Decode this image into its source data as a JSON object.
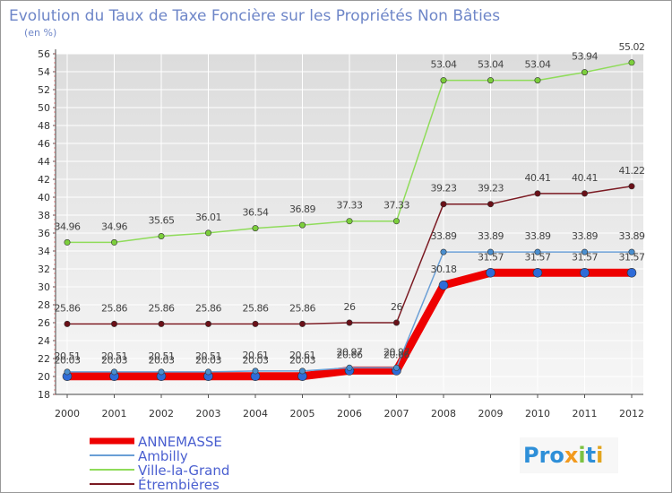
{
  "chart_data": {
    "type": "line",
    "title": "Evolution du Taux de Taxe Foncière sur les Propriétés Non Bâties",
    "subtitle": "(en %)",
    "xlabel": "",
    "ylabel": "",
    "x": [
      "2000",
      "2001",
      "2002",
      "2003",
      "2004",
      "2005",
      "2006",
      "2007",
      "2008",
      "2009",
      "2010",
      "2011",
      "2012"
    ],
    "ylim": [
      18,
      56
    ],
    "yticks": [
      "18",
      "20",
      "22",
      "24",
      "26",
      "28",
      "30",
      "32",
      "34",
      "36",
      "38",
      "40",
      "42",
      "44",
      "46",
      "48",
      "50",
      "52",
      "54",
      "56"
    ],
    "legend_position": "bottom-left",
    "series": [
      {
        "name": "ANNEMASSE",
        "color": "#ee0000",
        "values": [
          20.03,
          20.03,
          20.03,
          20.03,
          20.03,
          20.03,
          20.66,
          20.66,
          30.18,
          31.57,
          31.57,
          31.57,
          31.57
        ],
        "labels": [
          "20.03",
          "20.03",
          "20.03",
          "20.03",
          "20.03",
          "20.03",
          "20.66",
          "20.66",
          "30.18",
          "31.57",
          "31.57",
          "31.57",
          "31.57"
        ]
      },
      {
        "name": "Ambilly",
        "color": "#6a9fd6",
        "values": [
          20.51,
          20.51,
          20.51,
          20.51,
          20.61,
          20.61,
          20.97,
          20.97,
          33.89,
          33.89,
          33.89,
          33.89,
          33.89
        ],
        "labels": [
          "20.51",
          "20.51",
          "20.51",
          "20.51",
          "20.61",
          "20.61",
          "20.97",
          "20.97",
          "33.89",
          "33.89",
          "33.89",
          "33.89",
          "33.89"
        ]
      },
      {
        "name": "Ville-la-Grand",
        "color": "#8fdc5a",
        "values": [
          34.96,
          34.96,
          35.65,
          36.01,
          36.54,
          36.89,
          37.33,
          37.33,
          53.04,
          53.04,
          53.04,
          53.94,
          55.02
        ],
        "labels": [
          "34.96",
          "34.96",
          "35.65",
          "36.01",
          "36.54",
          "36.89",
          "37.33",
          "37.33",
          "53.04",
          "53.04",
          "53.04",
          "53.94",
          "55.02"
        ]
      },
      {
        "name": "Étrembières",
        "color": "#7b1a22",
        "values": [
          25.86,
          25.86,
          25.86,
          25.86,
          25.86,
          25.86,
          26,
          26,
          39.23,
          39.23,
          40.41,
          40.41,
          41.22
        ],
        "labels": [
          "25.86",
          "25.86",
          "25.86",
          "25.86",
          "25.86",
          "25.86",
          "26",
          "26",
          "39.23",
          "39.23",
          "40.41",
          "40.41",
          "41.22"
        ]
      }
    ]
  },
  "branding": {
    "logo_text": "Proxiti"
  }
}
